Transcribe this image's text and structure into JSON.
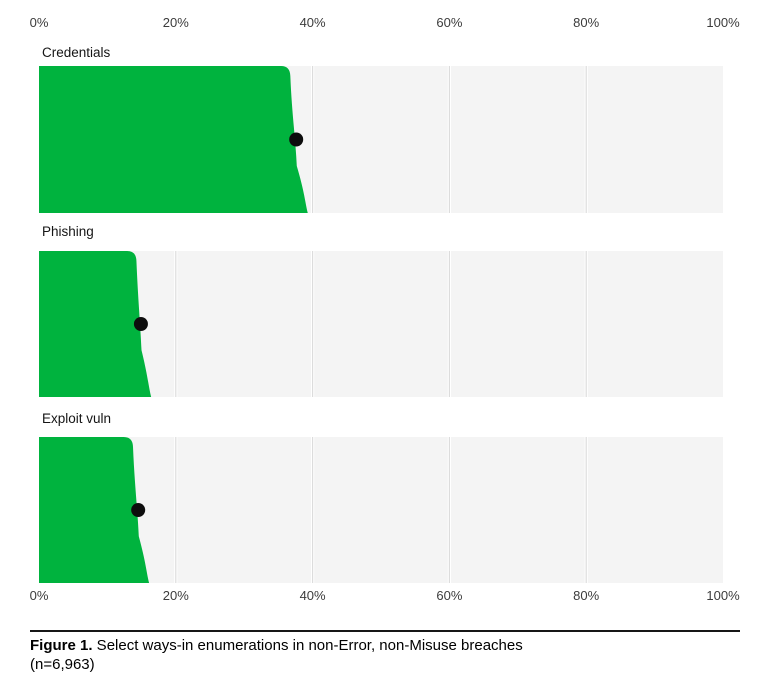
{
  "axis": {
    "ticks": [
      {
        "label": "0%",
        "value": 0
      },
      {
        "label": "20%",
        "value": 20
      },
      {
        "label": "40%",
        "value": 40
      },
      {
        "label": "60%",
        "value": 60
      },
      {
        "label": "80%",
        "value": 80
      },
      {
        "label": "100%",
        "value": 100
      }
    ]
  },
  "chart_data": {
    "type": "bar",
    "orientation": "horizontal",
    "unit": "percent",
    "xlim": [
      0,
      100
    ],
    "grid": true,
    "legend": "none",
    "categories": [
      "Credentials",
      "Phishing",
      "Exploit vuln"
    ],
    "series": [
      {
        "name": "Credentials",
        "value_pct": 38,
        "dot_pct": 37.6,
        "band_top_pct": 36.7,
        "band_bottom_pct": 39.0
      },
      {
        "name": "Phishing",
        "value_pct": 15,
        "dot_pct": 14.9,
        "band_top_pct": 14.2,
        "band_bottom_pct": 16.1
      },
      {
        "name": "Exploit vuln",
        "value_pct": 14,
        "dot_pct": 14.5,
        "band_top_pct": 13.7,
        "band_bottom_pct": 15.8
      }
    ]
  },
  "caption": {
    "label": "Figure 1.",
    "text": " Select ways-in enumerations in non-Error, non-Misuse breaches",
    "line2": "(n=6,963)"
  },
  "colors": {
    "bar_green": "#00b33e",
    "track_gray": "#f4f4f4",
    "gridline": "#dcdcdc",
    "gridline_halo": "#ffffff",
    "dot_black": "#0d0d0d"
  }
}
